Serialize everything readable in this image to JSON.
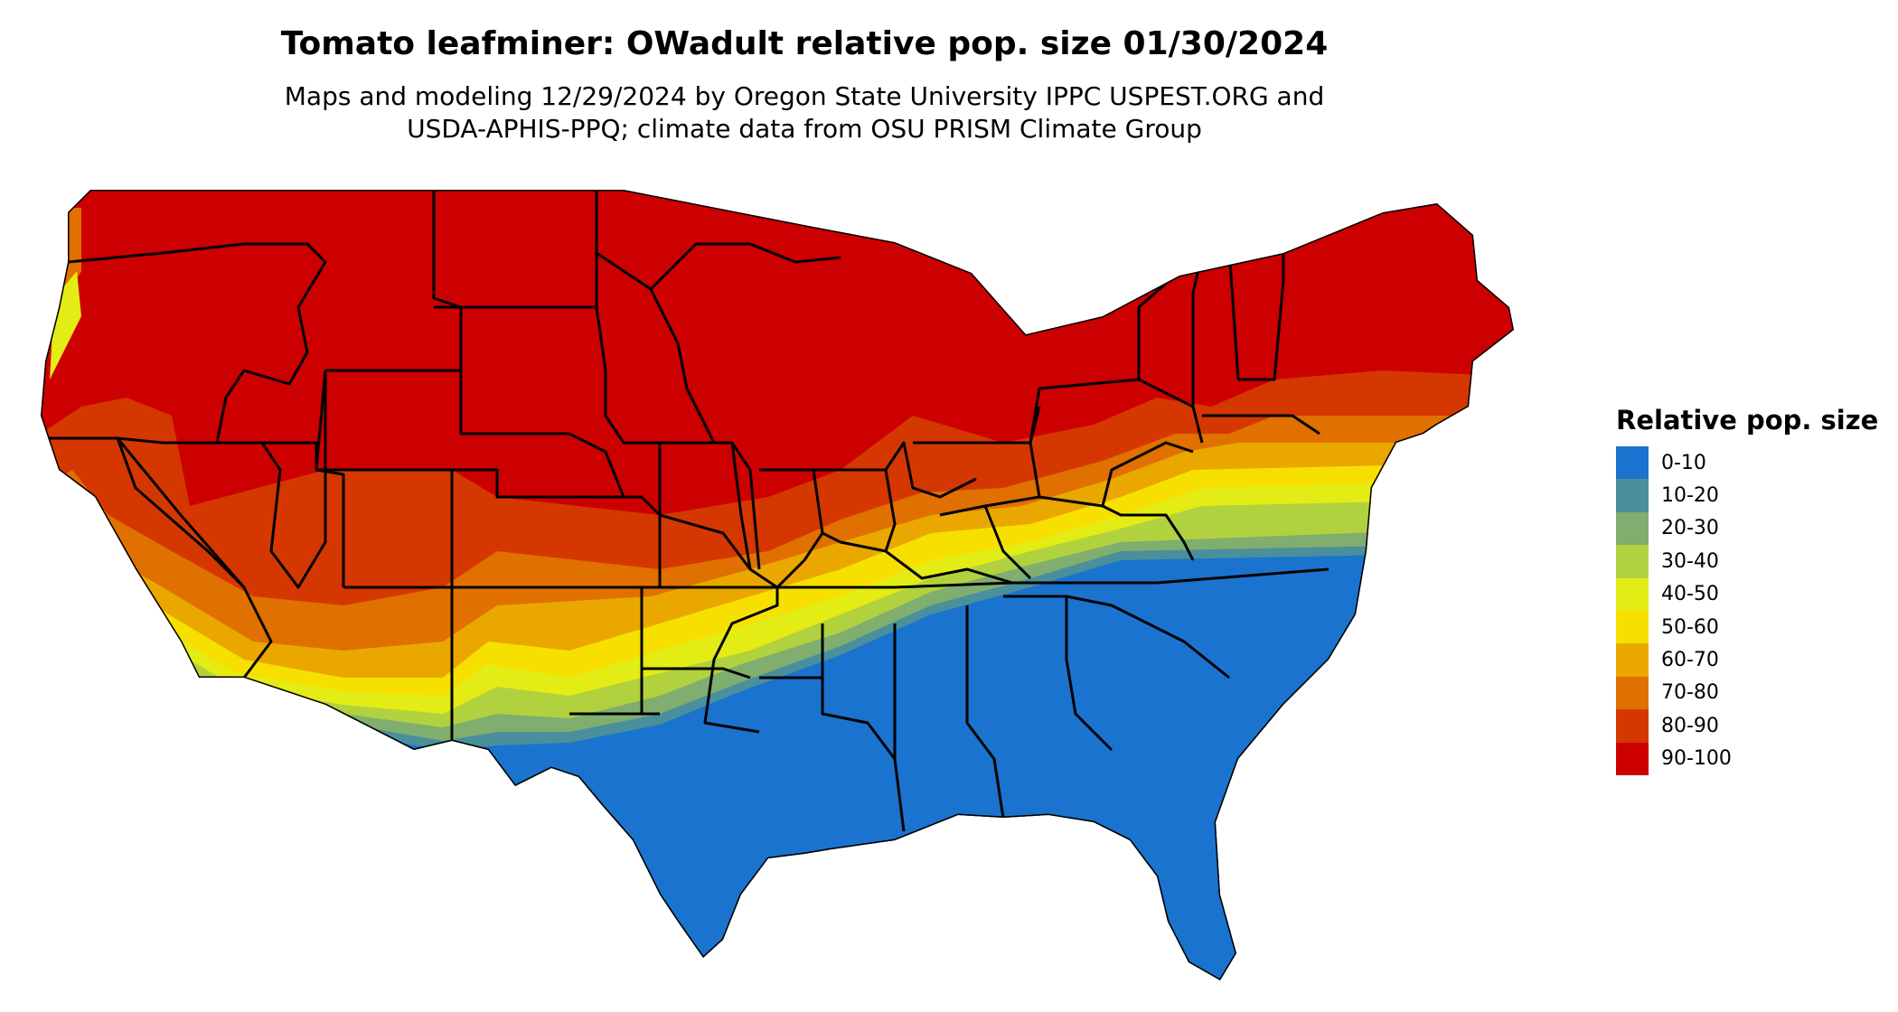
{
  "title": "Tomato leafminer: OWadult relative pop. size 01/30/2024",
  "subtitle_line1": "Maps and modeling 12/29/2024 by Oregon State University IPPC USPEST.ORG and",
  "subtitle_line2": "USDA-APHIS-PPQ; climate data from OSU PRISM Climate Group",
  "legend": {
    "title": "Relative pop. size",
    "items": [
      {
        "label": "0-10",
        "color": "#1a73cf"
      },
      {
        "label": "10-20",
        "color": "#4a8f9c"
      },
      {
        "label": "20-30",
        "color": "#7fae6e"
      },
      {
        "label": "30-40",
        "color": "#b2d13e"
      },
      {
        "label": "40-50",
        "color": "#e3ec14"
      },
      {
        "label": "50-60",
        "color": "#f7e000"
      },
      {
        "label": "60-70",
        "color": "#eaa700"
      },
      {
        "label": "70-80",
        "color": "#e07000"
      },
      {
        "label": "80-90",
        "color": "#d43800"
      },
      {
        "label": "90-100",
        "color": "#cc0000"
      }
    ]
  },
  "map": {
    "region": "Contiguous United States",
    "state_borders": true,
    "border_color": "#000000",
    "water_color": "#ffffff"
  }
}
